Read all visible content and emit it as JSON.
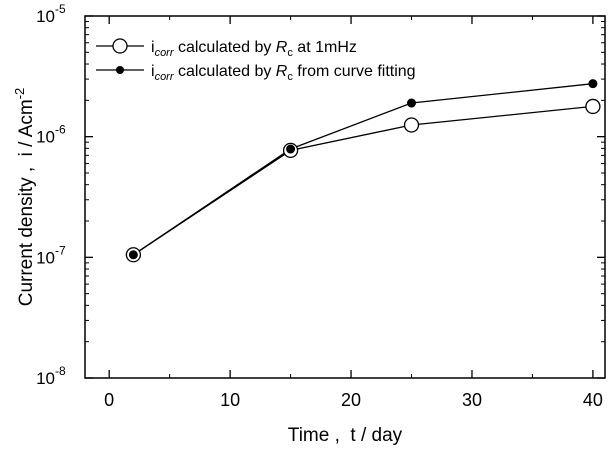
{
  "chart_data": {
    "type": "line",
    "xlabel": "Time ,  t / day",
    "ylabel": "Current density ,  i / Acm",
    "ylabel_sup": "-2",
    "xlim": [
      -2,
      41
    ],
    "ylim": [
      1e-08,
      1e-05
    ],
    "yscale": "log",
    "xticks": [
      0,
      10,
      20,
      30,
      40
    ],
    "xtick_labels": [
      "0",
      "10",
      "20",
      "30",
      "40"
    ],
    "yticks": [
      1e-08,
      1e-07,
      1e-06,
      1e-05
    ],
    "ytick_labels": [
      {
        "base": "10",
        "exp": "-8"
      },
      {
        "base": "10",
        "exp": "-7"
      },
      {
        "base": "10",
        "exp": "-6"
      },
      {
        "base": "10",
        "exp": "-5"
      }
    ],
    "grid": false,
    "legend_position": "top-left",
    "series": [
      {
        "legend": {
          "pre": "i",
          "sub": "corr",
          "mid": " calculated by ",
          "italic": "R",
          "sub2": "c",
          "post": " at 1mHz"
        },
        "marker": "open-circle",
        "color": "#000000",
        "x": [
          2,
          15,
          25,
          40
        ],
        "y": [
          1.05e-07,
          7.7e-07,
          1.25e-06,
          1.78e-06
        ]
      },
      {
        "legend": {
          "pre": "i",
          "sub": "corr",
          "mid": " calculated by ",
          "italic": "R",
          "sub2": "c",
          "post": " from curve fitting"
        },
        "marker": "filled-circle",
        "color": "#000000",
        "x": [
          2,
          15,
          25,
          40
        ],
        "y": [
          1.05e-07,
          7.9e-07,
          1.9e-06,
          2.75e-06
        ]
      }
    ]
  }
}
